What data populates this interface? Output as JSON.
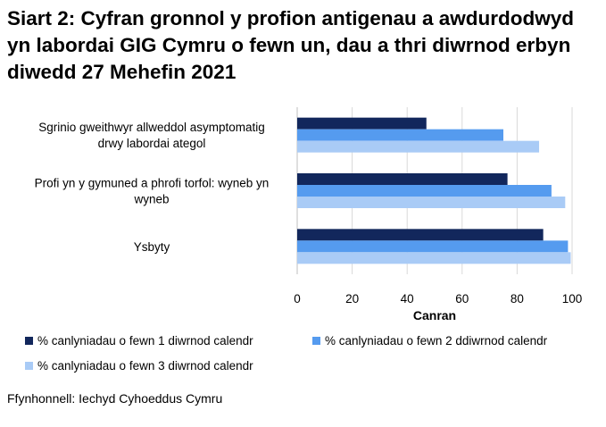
{
  "title": "Siart 2: Cyfran gronnol y profion antigenau a awdurdodwyd yn labordai GIG Cymru o fewn un, dau a thri diwrnod erbyn diwedd 27 Mehefin 2021",
  "source": "Ffynhonnell: Iechyd Cyhoeddus Cymru",
  "chart_data": {
    "type": "bar",
    "orientation": "horizontal",
    "title": "Siart 2: Cyfran gronnol y profion antigenau a awdurdodwyd yn labordai GIG Cymru o fewn un, dau a thri diwrnod erbyn diwedd 27 Mehefin 2021",
    "categories": [
      [
        "Sgrinio gweithwyr allweddol asymptomatig",
        "drwy labordai ategol"
      ],
      [
        "Profi yn y gymuned a phrofi torfol: wyneb yn",
        "wyneb"
      ],
      [
        "Ysbyty"
      ]
    ],
    "series": [
      {
        "name": "% canlyniadau o fewn 1 diwrnod calendr",
        "color": "#12275c",
        "values": [
          47,
          76.5,
          89.5
        ]
      },
      {
        "name": "% canlyniadau o fewn 2 ddiwrnod calendr",
        "color": "#559bef",
        "values": [
          75,
          92.5,
          98.5
        ]
      },
      {
        "name": "% canlyniadau o fewn 3 diwrnod calendr",
        "color": "#a9cbf6",
        "values": [
          88,
          97.5,
          99.5
        ]
      }
    ],
    "xlabel": "Canran",
    "ylabel": "",
    "xlim": [
      0,
      100
    ],
    "xticks": [
      0,
      20,
      40,
      60,
      80,
      100
    ],
    "grid": true,
    "legend_position": "bottom"
  }
}
